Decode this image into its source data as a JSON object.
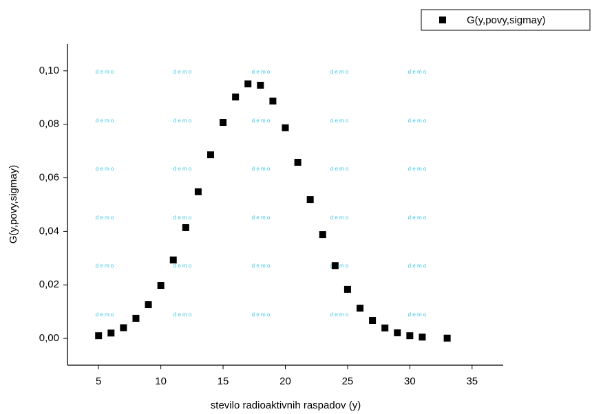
{
  "chart_data": {
    "type": "scatter",
    "xlabel": "stevilo radioaktivnih raspadov (y)",
    "ylabel": "G(y,povy,sigmay)",
    "watermark": "d e m o",
    "legend": "top-right",
    "series": [
      {
        "name": "G(y,povy,sigmay)",
        "color": "#000000",
        "x": [
          5,
          6,
          7,
          8,
          9,
          10,
          11,
          12,
          13,
          14,
          15,
          16,
          17,
          18,
          19,
          20,
          21,
          22,
          23,
          24,
          25,
          26,
          27,
          28,
          29,
          30,
          31,
          33
        ],
        "values": [
          0.001,
          0.002,
          0.004,
          0.0075,
          0.0126,
          0.0198,
          0.0293,
          0.0414,
          0.0548,
          0.0686,
          0.0807,
          0.0902,
          0.0951,
          0.0946,
          0.0887,
          0.0787,
          0.0658,
          0.0519,
          0.0388,
          0.0272,
          0.0183,
          0.0113,
          0.0067,
          0.0039,
          0.0021,
          0.001,
          0.0005,
          0.0001
        ]
      }
    ],
    "xlim": [
      2.5,
      37.5
    ],
    "xticks": [
      5,
      10,
      15,
      20,
      25,
      30,
      35
    ],
    "ylim": [
      -0.01,
      0.11
    ],
    "yticks": [
      {
        "value": 0,
        "label": "0,00"
      },
      {
        "value": 0.02,
        "label": "0,02"
      },
      {
        "value": 0.04,
        "label": "0,04"
      },
      {
        "value": 0.06,
        "label": "0,06"
      },
      {
        "value": 0.08,
        "label": "0,08"
      },
      {
        "value": 0.1,
        "label": "0,10"
      }
    ]
  }
}
